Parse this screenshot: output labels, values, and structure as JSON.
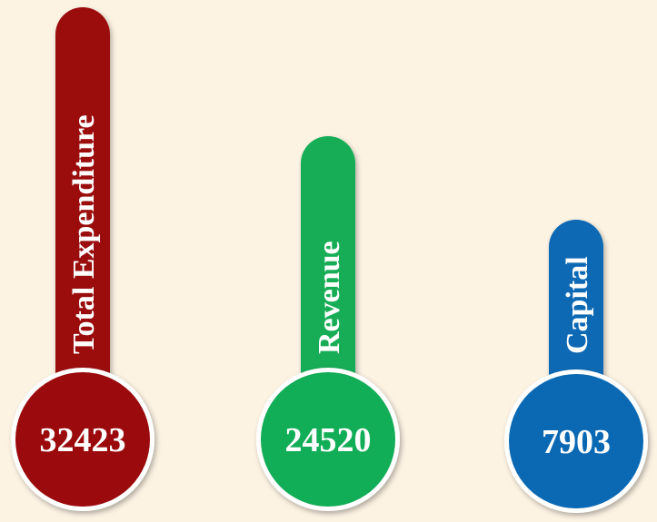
{
  "items": [
    {
      "label": "Total Expenditure",
      "value": 32423,
      "color": "#9b0a0c"
    },
    {
      "label": "Revenue",
      "value": 24520,
      "color": "#12ad57"
    },
    {
      "label": "Capital",
      "value": 7903,
      "color": "#0b69b4"
    }
  ]
}
